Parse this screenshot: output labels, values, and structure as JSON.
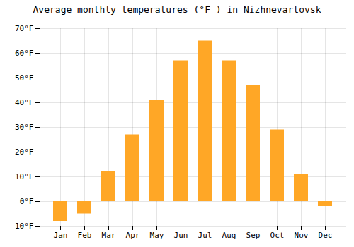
{
  "chart_data": {
    "type": "bar",
    "title": "Average monthly temperatures (°F ) in Nizhnevartovsk",
    "categories": [
      "Jan",
      "Feb",
      "Mar",
      "Apr",
      "May",
      "Jun",
      "Jul",
      "Aug",
      "Sep",
      "Oct",
      "Nov",
      "Dec"
    ],
    "values": [
      -8,
      -5,
      12,
      27,
      41,
      57,
      65,
      57,
      47,
      29,
      11,
      -2
    ],
    "color": "#FFA726",
    "ylim": [
      -10,
      70
    ],
    "yticks": [
      {
        "value": -10,
        "label": "-10°F"
      },
      {
        "value": 0,
        "label": "0°F"
      },
      {
        "value": 10,
        "label": "10°F"
      },
      {
        "value": 20,
        "label": "20°F"
      },
      {
        "value": 30,
        "label": "30°F"
      },
      {
        "value": 40,
        "label": "40°F"
      },
      {
        "value": 50,
        "label": "50°F"
      },
      {
        "value": 60,
        "label": "60°F"
      },
      {
        "value": 70,
        "label": "70°F"
      }
    ],
    "grid": true
  }
}
